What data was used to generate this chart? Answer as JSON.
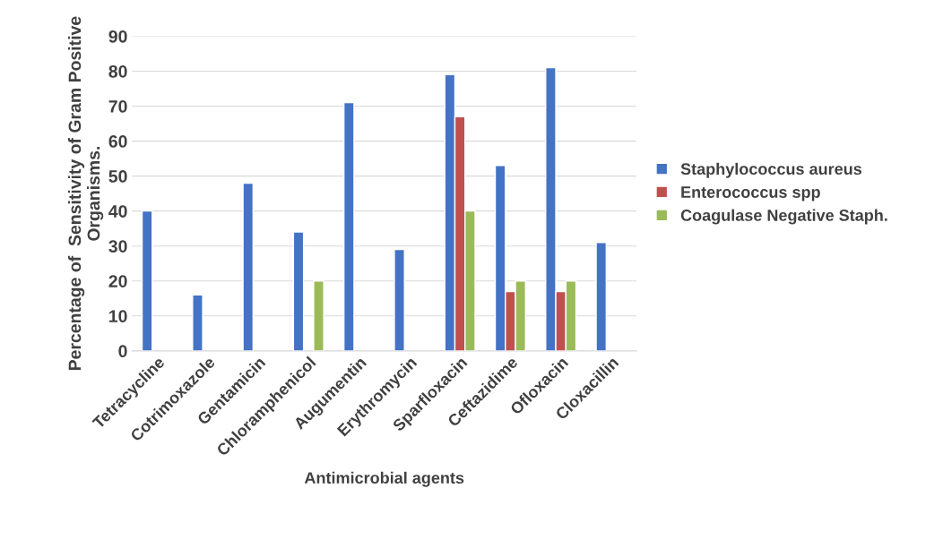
{
  "chart_data": {
    "type": "bar",
    "categories": [
      "Tetracycline",
      "Cotrimoxazole",
      "Gentamicin",
      "Chloramphenicol",
      "Augumentin",
      "Erythromycin",
      "Sparfloxacin",
      "Ceftazidime",
      "Ofloxacin",
      "Cloxacillin"
    ],
    "series": [
      {
        "name": "Staphylococcus aureus",
        "color": "#4472c4",
        "values": [
          40,
          16,
          48,
          34,
          71,
          29,
          79,
          53,
          81,
          31
        ]
      },
      {
        "name": "Enterococcus spp",
        "color": "#c0504d",
        "values": [
          null,
          null,
          null,
          null,
          null,
          null,
          67,
          17,
          17,
          null
        ]
      },
      {
        "name": "Coagulase Negative Staph.",
        "color": "#9bbb59",
        "values": [
          null,
          null,
          null,
          20,
          null,
          null,
          40,
          20,
          20,
          null
        ]
      }
    ],
    "xlabel": "Antimicrobial agents",
    "ylabel": "Percentage of  Sensitivity of Gram Positive\nOrganisms.",
    "ylim": [
      0,
      90
    ],
    "yticks": [
      0,
      10,
      20,
      30,
      40,
      50,
      60,
      70,
      80,
      90
    ],
    "grid": "y",
    "legend": "right"
  }
}
